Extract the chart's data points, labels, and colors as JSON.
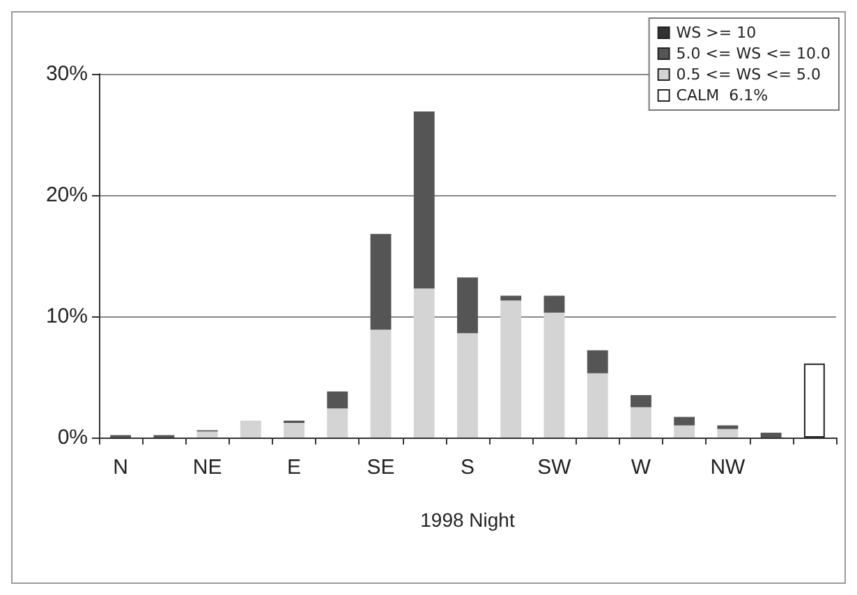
{
  "chart_data": {
    "type": "bar",
    "xlabel": "1998 Night",
    "stacked": true,
    "categories": [
      "N",
      null,
      "NE",
      null,
      "E",
      null,
      "SE",
      null,
      "S",
      null,
      "SW",
      null,
      "W",
      null,
      "NW",
      null,
      null
    ],
    "series": [
      {
        "name": "CALM  6.1%",
        "color": "#ffffff",
        "values": [
          null,
          null,
          null,
          null,
          null,
          null,
          null,
          null,
          null,
          null,
          null,
          null,
          null,
          null,
          null,
          null,
          6.1
        ]
      },
      {
        "name": "0.5 <= WS <= 5.0",
        "color": "#d4d4d4",
        "values": [
          null,
          null,
          0.5,
          1.4,
          1.2,
          2.4,
          8.9,
          12.3,
          8.6,
          11.3,
          10.3,
          5.3,
          2.5,
          1.0,
          0.7,
          null,
          null
        ]
      },
      {
        "name": "5.0 <= WS <= 10.0",
        "color": "#555555",
        "values": [
          0.2,
          0.2,
          0.1,
          0,
          0.2,
          1.4,
          7.9,
          14.6,
          4.6,
          0.4,
          1.4,
          1.9,
          1.0,
          0.7,
          0.3,
          0.4,
          null
        ]
      },
      {
        "name": "WS >= 10",
        "color": "#333333",
        "values": [
          null,
          null,
          null,
          null,
          null,
          null,
          null,
          null,
          null,
          null,
          null,
          null,
          null,
          null,
          null,
          null,
          null
        ]
      }
    ],
    "ylim": [
      0,
      30
    ],
    "yticks": [
      {
        "value": 0,
        "label": "0%"
      },
      {
        "value": 10,
        "label": "10%"
      },
      {
        "value": 20,
        "label": "20%"
      },
      {
        "value": 30,
        "label": "30%"
      }
    ],
    "grid": "y",
    "legend": "top right"
  }
}
